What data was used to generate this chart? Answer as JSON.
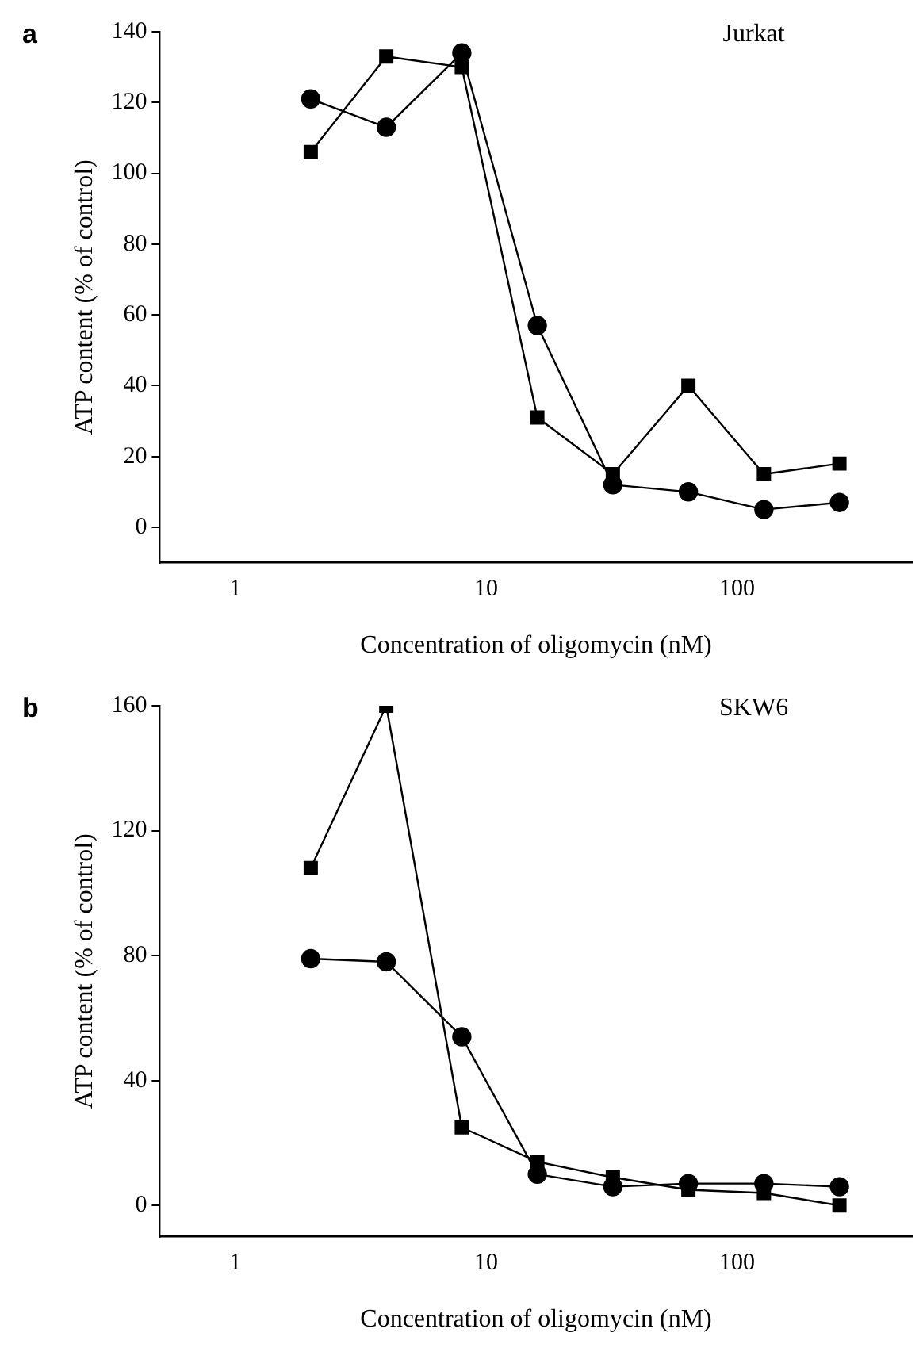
{
  "chart_data": [
    {
      "type": "line",
      "title": "a",
      "xlabel": "Concentration of oligomycin (nM)",
      "ylabel": "ATP content (% of control)",
      "annotations": [
        "Jurkat"
      ],
      "log": "x",
      "xlim": [
        0.5,
        500
      ],
      "xticks": [
        1,
        10,
        100
      ],
      "ylim": [
        -10,
        140
      ],
      "yticks": [
        0,
        20,
        40,
        60,
        80,
        100,
        120,
        140
      ],
      "x": [
        2,
        4,
        8,
        16,
        32,
        64,
        128,
        256
      ],
      "series": [
        {
          "color": "#000000",
          "marker": "circle",
          "values": [
            121,
            113,
            134,
            57,
            12,
            10,
            5,
            7
          ]
        },
        {
          "color": "#000000",
          "marker": "square",
          "values": [
            106,
            133,
            130,
            31,
            15,
            40,
            15,
            18
          ]
        }
      ]
    },
    {
      "type": "line",
      "title": "b",
      "xlabel": "Concentration of oligomycin (nM)",
      "ylabel": "ATP content (% of control)",
      "annotations": [
        "SKW6"
      ],
      "log": "x",
      "xlim": [
        0.5,
        500
      ],
      "xticks": [
        1,
        10,
        100
      ],
      "ylim": [
        -10,
        160
      ],
      "yticks": [
        0,
        40,
        80,
        120,
        160
      ],
      "x": [
        2,
        4,
        8,
        16,
        32,
        64,
        128,
        256
      ],
      "series": [
        {
          "color": "#000000",
          "marker": "circle",
          "values": [
            79,
            78,
            54,
            10,
            6,
            7,
            7,
            6
          ]
        },
        {
          "color": "#000000",
          "marker": "square",
          "values": [
            108,
            160,
            25,
            14,
            9,
            5,
            4,
            0
          ]
        }
      ]
    }
  ]
}
